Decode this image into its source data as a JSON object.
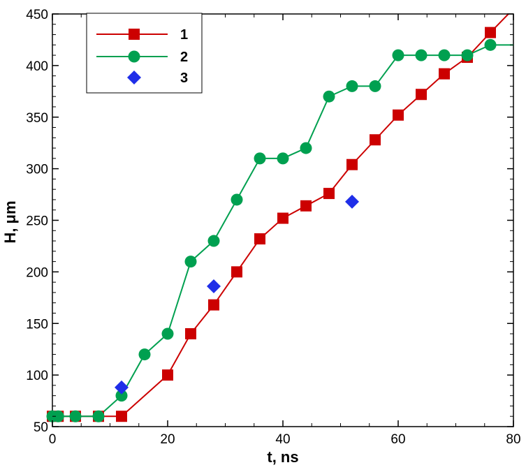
{
  "chart_data": {
    "type": "line",
    "xlabel": "t, ns",
    "ylabel": "H, μm",
    "xlim": [
      0,
      80
    ],
    "ylim": [
      50,
      450
    ],
    "xticks": [
      0,
      20,
      40,
      60,
      80
    ],
    "yticks": [
      50,
      100,
      150,
      200,
      250,
      300,
      350,
      400,
      450
    ],
    "grid": false,
    "legend_position": "top-left",
    "series": [
      {
        "name": "1",
        "color": "#cc0000",
        "marker": "square",
        "line": true,
        "x": [
          0,
          1,
          4,
          8,
          12,
          20,
          24,
          28,
          32,
          36,
          40,
          44,
          48,
          52,
          56,
          60,
          64,
          68,
          72,
          76,
          80
        ],
        "y": [
          60,
          60,
          60,
          60,
          60,
          100,
          140,
          168,
          200,
          232,
          252,
          264,
          276,
          304,
          328,
          352,
          372,
          392,
          408,
          432,
          455
        ],
        "marker_mask": [
          true,
          true,
          true,
          true,
          true,
          true,
          true,
          true,
          true,
          true,
          true,
          true,
          true,
          true,
          true,
          true,
          true,
          true,
          true,
          true,
          false
        ]
      },
      {
        "name": "2",
        "color": "#00a050",
        "marker": "circle",
        "line": true,
        "x": [
          0,
          1,
          4,
          8,
          12,
          16,
          20,
          24,
          28,
          32,
          36,
          40,
          44,
          48,
          52,
          56,
          60,
          64,
          68,
          72,
          76,
          80
        ],
        "y": [
          60,
          60,
          60,
          60,
          80,
          120,
          140,
          210,
          230,
          270,
          310,
          310,
          320,
          370,
          380,
          380,
          410,
          410,
          410,
          410,
          420,
          420
        ],
        "marker_mask": [
          true,
          true,
          true,
          true,
          true,
          true,
          true,
          true,
          true,
          true,
          true,
          true,
          true,
          true,
          true,
          true,
          true,
          true,
          true,
          true,
          true,
          false
        ]
      },
      {
        "name": "3",
        "color": "#1f2ee8",
        "marker": "diamond",
        "line": false,
        "x": [
          12,
          28,
          52
        ],
        "y": [
          88,
          186,
          268
        ]
      }
    ]
  }
}
